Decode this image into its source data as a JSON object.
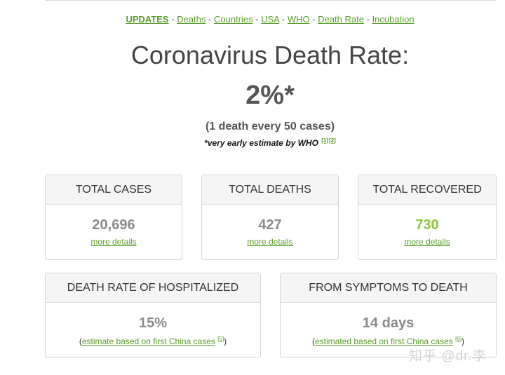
{
  "nav": {
    "items": [
      {
        "label": "UPDATES",
        "active": true
      },
      {
        "label": "Deaths"
      },
      {
        "label": "Countries"
      },
      {
        "label": "USA"
      },
      {
        "label": "WHO"
      },
      {
        "label": "Death Rate"
      },
      {
        "label": "Incubation"
      }
    ],
    "separator": "-"
  },
  "title": "Coronavirus Death Rate:",
  "rate": "2%*",
  "subtitle": "(1 death every 50 cases)",
  "note": {
    "text": "*very early estimate by WHO",
    "refs": [
      "[1]",
      "[2]"
    ]
  },
  "cards": {
    "total_cases": {
      "header": "TOTAL CASES",
      "value": "20,696",
      "link": "more details"
    },
    "total_deaths": {
      "header": "TOTAL DEATHS",
      "value": "427",
      "link": "more details"
    },
    "total_recovered": {
      "header": "TOTAL RECOVERED",
      "value": "730",
      "link": "more details"
    },
    "hospitalized": {
      "header": "DEATH RATE OF HOSPITALIZED",
      "value": "15%",
      "open": "(",
      "link": "estimate based on first China cases",
      "ref": "[5]",
      "close": ")"
    },
    "symptoms": {
      "header": "FROM SYMPTOMS TO DEATH",
      "value": "14 days",
      "open": "(",
      "link": "estimated based on first China cases",
      "ref": "[6]",
      "close": ")"
    }
  },
  "colors": {
    "link_green": "#5a9d27",
    "recovered_green": "#8dc63f",
    "value_gray": "#8a8a8a"
  },
  "watermark": "知乎 @dr.李"
}
